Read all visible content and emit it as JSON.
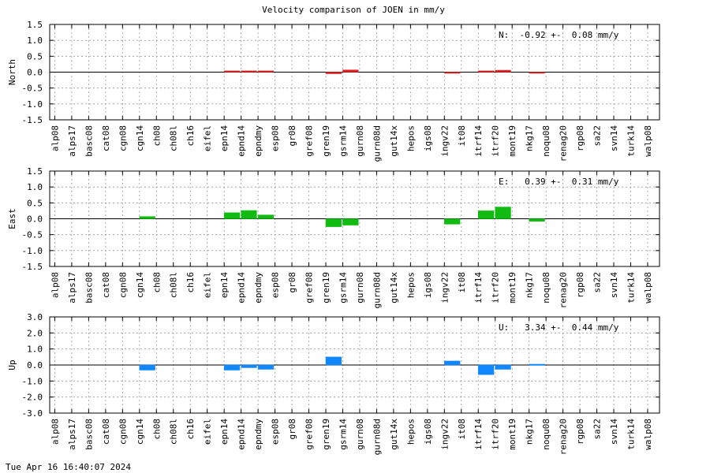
{
  "title": "Velocity comparison of JOEN in mm/y",
  "timestamp": "Tue Apr 16 16:40:07 2024",
  "chart_data": [
    {
      "type": "bar",
      "ylabel": "North",
      "annotation": "N:  -0.92 +-  0.08 mm/y",
      "color": "#dd2222",
      "ylim": [
        -1.5,
        1.5
      ],
      "yticks": [
        "1.5",
        "1.0",
        "0.5",
        "0.0",
        "-0.5",
        "-1.0",
        "-1.5"
      ],
      "grid": true,
      "categories": [
        "alp08",
        "alps17",
        "basc08",
        "cat08",
        "cgn08",
        "cgn14",
        "ch08",
        "ch08l",
        "ch16",
        "eifel",
        "epn14",
        "epnd14",
        "epndmy",
        "esp08",
        "gr08",
        "gref08",
        "gren19",
        "gsrm14",
        "gurn08",
        "gurn08d",
        "gut14x",
        "hepos",
        "igs08",
        "ingv22",
        "it08",
        "itrf14",
        "itrf20",
        "mont19",
        "nkg17",
        "noqu08",
        "renag20",
        "rgp08",
        "sa22",
        "svn14",
        "turk14",
        "walp08"
      ],
      "values": [
        0,
        0,
        0,
        0,
        0,
        0,
        0,
        0,
        0,
        0,
        0.04,
        0.04,
        0.04,
        0,
        0,
        0,
        -0.05,
        0.07,
        0,
        0,
        0,
        0,
        0,
        -0.03,
        0,
        0.04,
        0.06,
        0,
        -0.03,
        0,
        0,
        0,
        0,
        0,
        0,
        0
      ]
    },
    {
      "type": "bar",
      "ylabel": "East",
      "annotation": "E:   0.39 +-  0.31 mm/y",
      "color": "#11bb11",
      "ylim": [
        -1.5,
        1.5
      ],
      "yticks": [
        "1.5",
        "1.0",
        "0.5",
        "0.0",
        "-0.5",
        "-1.0",
        "-1.5"
      ],
      "grid": true,
      "categories": [
        "alp08",
        "alps17",
        "basc08",
        "cat08",
        "cgn08",
        "cgn14",
        "ch08",
        "ch08l",
        "ch16",
        "eifel",
        "epn14",
        "epnd14",
        "epndmy",
        "esp08",
        "gr08",
        "gref08",
        "gren19",
        "gsrm14",
        "gurn08",
        "gurn08d",
        "gut14x",
        "hepos",
        "igs08",
        "ingv22",
        "it08",
        "itrf14",
        "itrf20",
        "mont19",
        "nkg17",
        "noqu08",
        "renag20",
        "rgp08",
        "sa22",
        "svn14",
        "turk14",
        "walp08"
      ],
      "values": [
        0,
        0,
        0,
        0,
        0,
        0.07,
        0,
        0,
        0,
        0,
        0.19,
        0.26,
        0.12,
        0,
        0,
        0,
        -0.25,
        -0.2,
        0,
        0,
        0,
        0,
        0,
        -0.17,
        0,
        0.25,
        0.37,
        0,
        -0.08,
        0,
        0,
        0,
        0,
        0,
        0,
        0
      ]
    },
    {
      "type": "bar",
      "ylabel": "Up",
      "annotation": "U:   3.34 +-  0.44 mm/y",
      "color": "#1188ff",
      "ylim": [
        -3.0,
        3.0
      ],
      "yticks": [
        "3.0",
        "2.0",
        "1.0",
        "0.0",
        "-1.0",
        "-2.0",
        "-3.0"
      ],
      "grid": true,
      "categories": [
        "alp08",
        "alps17",
        "basc08",
        "cat08",
        "cgn08",
        "cgn14",
        "ch08",
        "ch08l",
        "ch16",
        "eifel",
        "epn14",
        "epnd14",
        "epndmy",
        "esp08",
        "gr08",
        "gref08",
        "gren19",
        "gsrm14",
        "gurn08",
        "gurn08d",
        "gut14x",
        "hepos",
        "igs08",
        "ingv22",
        "it08",
        "itrf14",
        "itrf20",
        "mont19",
        "nkg17",
        "noqu08",
        "renag20",
        "rgp08",
        "sa22",
        "svn14",
        "turk14",
        "walp08"
      ],
      "values": [
        0,
        0,
        0,
        0,
        0,
        -0.32,
        0,
        0,
        0,
        0,
        -0.32,
        -0.17,
        -0.27,
        0,
        0,
        0,
        0.5,
        0,
        0,
        0,
        0,
        0,
        0,
        0.25,
        0,
        -0.6,
        -0.27,
        0,
        0.05,
        0,
        0,
        0,
        0,
        0,
        0,
        0
      ]
    }
  ]
}
